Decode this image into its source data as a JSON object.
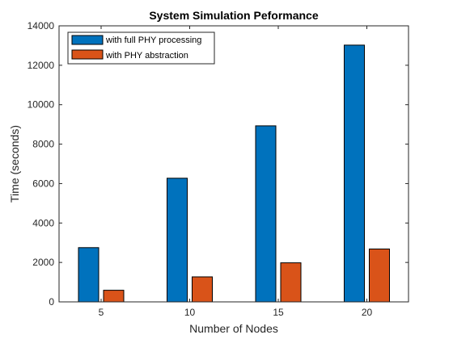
{
  "chart_data": {
    "type": "bar",
    "title": "System Simulation Peformance",
    "xlabel": "Number of Nodes",
    "ylabel": "Time (seconds)",
    "categories": [
      "5",
      "10",
      "15",
      "20"
    ],
    "ylim": [
      0,
      14000
    ],
    "yticks": [
      0,
      2000,
      4000,
      6000,
      8000,
      10000,
      12000,
      14000
    ],
    "grid": false,
    "legend_position": "top-left",
    "series": [
      {
        "name": "with full PHY processing",
        "values": [
          2750,
          6270,
          8930,
          13020
        ],
        "color": "#0072bd"
      },
      {
        "name": "with PHY abstraction",
        "values": [
          590,
          1270,
          1980,
          2680
        ],
        "color": "#d95319"
      }
    ]
  }
}
